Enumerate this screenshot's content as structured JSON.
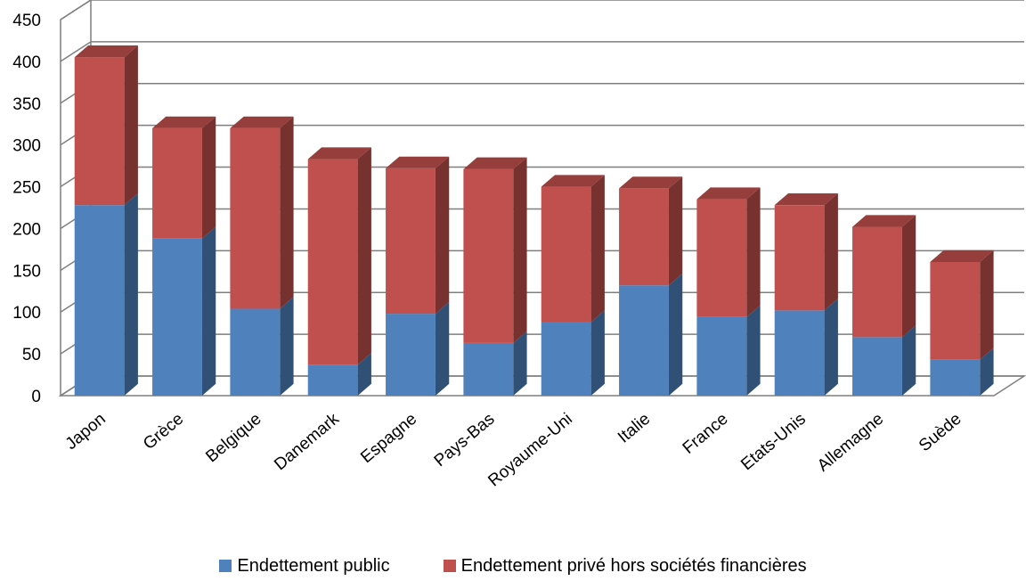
{
  "chart_data": {
    "type": "bar",
    "stacked": true,
    "three_d": true,
    "categories": [
      "Japon",
      "Grèce",
      "Belgique",
      "Danemark",
      "Espagne",
      "Pays-Bas",
      "Royaume-Uni",
      "Italie",
      "France",
      "Etats-Unis",
      "Allemagne",
      "Suède"
    ],
    "series": [
      {
        "name": "Endettement public",
        "color": "#4F81BD",
        "values": [
          228,
          188,
          104,
          37,
          98,
          63,
          88,
          132,
          94,
          102,
          70,
          43
        ]
      },
      {
        "name": "Endettement privé hors sociétés financières",
        "color": "#C0504D",
        "values": [
          177,
          132,
          216,
          246,
          174,
          208,
          162,
          116,
          141,
          126,
          132,
          117
        ]
      }
    ],
    "ylim": [
      0,
      450
    ],
    "yticks": [
      0,
      50,
      100,
      150,
      200,
      250,
      300,
      350,
      400,
      450
    ],
    "grid": true,
    "legend_position": "bottom",
    "title": "",
    "xlabel": "",
    "ylabel": ""
  }
}
